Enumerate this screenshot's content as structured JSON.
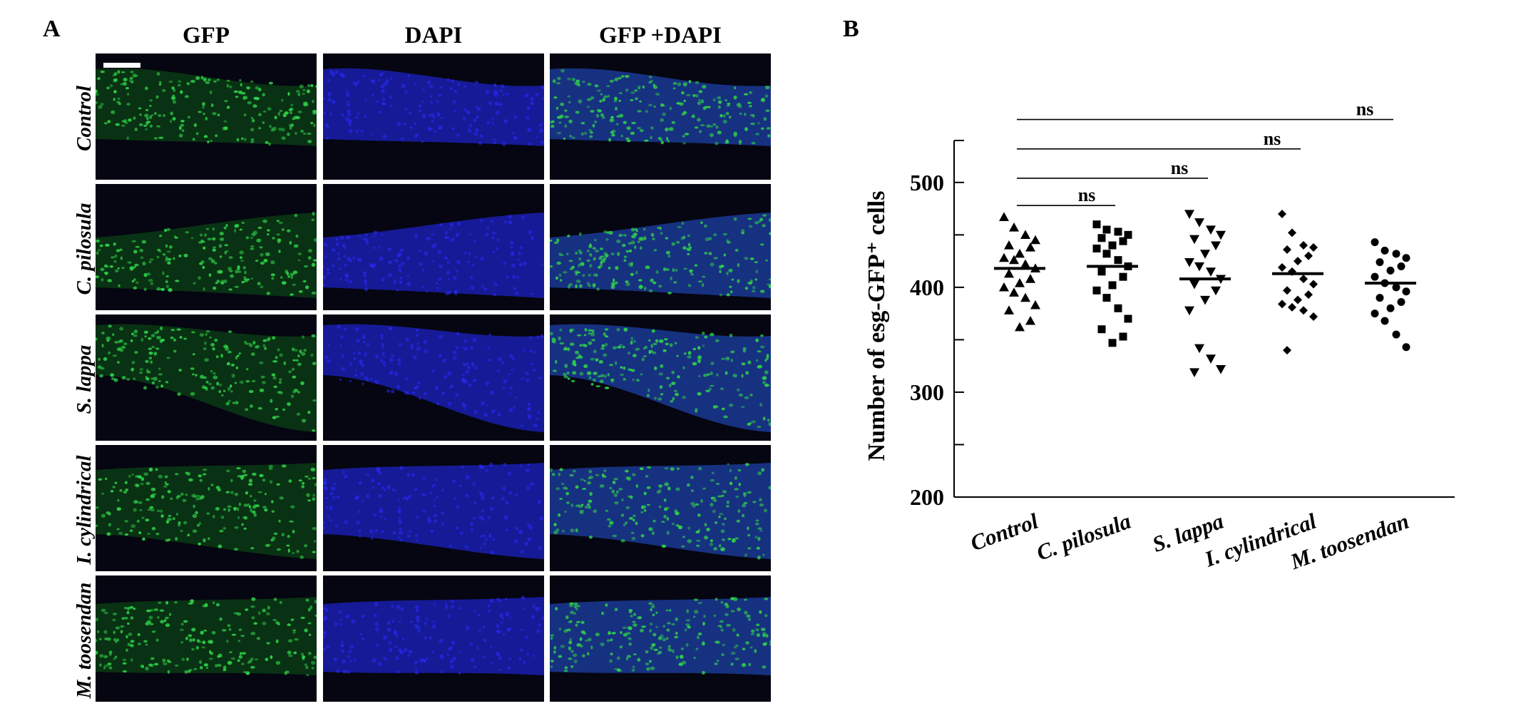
{
  "panel_a": {
    "letter": "A",
    "columns": [
      "GFP",
      "DAPI",
      "GFP +DAPI"
    ],
    "rows": [
      "Control",
      "C. pilosula",
      "S. lappa",
      "I. cylindrical",
      "M. toosendan"
    ],
    "channel_colors": {
      "GFP": "#2fd24a",
      "DAPI": "#2a2cff",
      "background": "#050611"
    },
    "scale_bar": true
  },
  "panel_b": {
    "letter": "B"
  },
  "chart_data": {
    "type": "scatter",
    "ylabel": "Number of esg-GFP⁺ cells",
    "xlabel": "",
    "categories": [
      "Control",
      "C. pilosula",
      "S. lappa",
      "I. cylindrical",
      "M. toosendan"
    ],
    "ylim": [
      200,
      540
    ],
    "yticks": [
      200,
      300,
      400,
      500
    ],
    "minor_yticks": [
      250,
      350,
      450
    ],
    "series": [
      {
        "category": "Control",
        "marker": "triangle-up",
        "mean": 418,
        "values": [
          467,
          457,
          450,
          445,
          440,
          438,
          432,
          428,
          426,
          422,
          418,
          413,
          408,
          404,
          400,
          395,
          390,
          383,
          378,
          368,
          362
        ]
      },
      {
        "category": "C. pilosula",
        "marker": "square",
        "mean": 420,
        "values": [
          460,
          455,
          453,
          450,
          447,
          444,
          440,
          437,
          432,
          426,
          420,
          415,
          410,
          402,
          397,
          390,
          380,
          370,
          360,
          353,
          347
        ]
      },
      {
        "category": "S. lappa",
        "marker": "triangle-down",
        "mean": 408,
        "values": [
          470,
          462,
          455,
          450,
          446,
          440,
          432,
          424,
          420,
          415,
          408,
          403,
          397,
          388,
          378,
          342,
          332,
          322,
          319
        ]
      },
      {
        "category": "I. cylindrical",
        "marker": "diamond",
        "mean": 413,
        "values": [
          470,
          452,
          440,
          438,
          436,
          430,
          425,
          419,
          415,
          408,
          403,
          397,
          393,
          388,
          384,
          381,
          378,
          372,
          340
        ]
      },
      {
        "category": "M. toosendan",
        "marker": "circle",
        "mean": 404,
        "values": [
          443,
          435,
          432,
          428,
          424,
          420,
          416,
          410,
          404,
          400,
          396,
          390,
          386,
          380,
          375,
          368,
          355,
          343
        ]
      }
    ],
    "comparisons": [
      {
        "from": "Control",
        "to": "C. pilosula",
        "label": "ns",
        "y": 478
      },
      {
        "from": "Control",
        "to": "S. lappa",
        "label": "ns",
        "y": 504
      },
      {
        "from": "Control",
        "to": "I. cylindrical",
        "label": "ns",
        "y": 532
      },
      {
        "from": "Control",
        "to": "M. toosendan",
        "label": "ns",
        "y": 560
      }
    ],
    "grid": false,
    "legend": "none"
  }
}
